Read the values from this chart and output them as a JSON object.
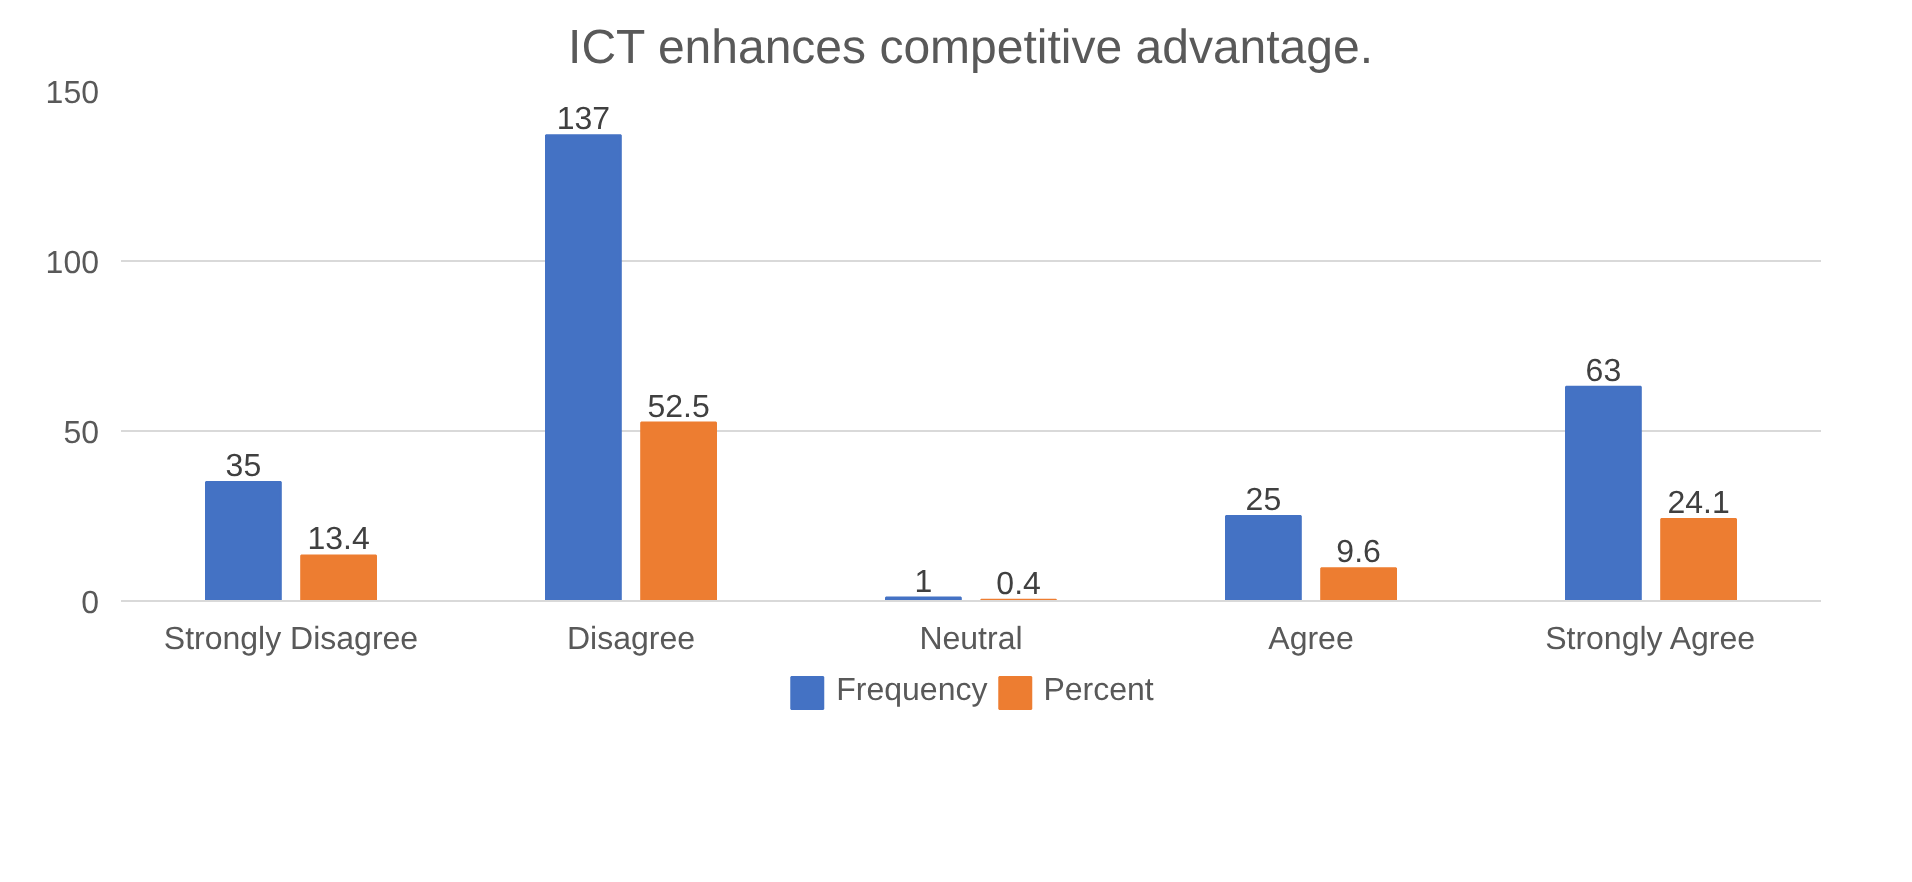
{
  "chart_data": {
    "type": "bar",
    "title": "ICT enhances competitive advantage.",
    "categories": [
      "Strongly Disagree",
      "Disagree",
      "Neutral",
      "Agree",
      "Strongly Agree"
    ],
    "series": [
      {
        "name": "Frequency",
        "color": "#4472c4",
        "values": [
          35,
          137,
          1,
          25,
          63
        ]
      },
      {
        "name": "Percent",
        "color": "#ed7d31",
        "values": [
          13.4,
          52.5,
          0.4,
          9.6,
          24.1
        ]
      }
    ],
    "ylim": [
      0,
      150
    ],
    "yticks": [
      0,
      50,
      100,
      150
    ],
    "grid": "y",
    "legend": "bottom",
    "data_labels": true
  }
}
